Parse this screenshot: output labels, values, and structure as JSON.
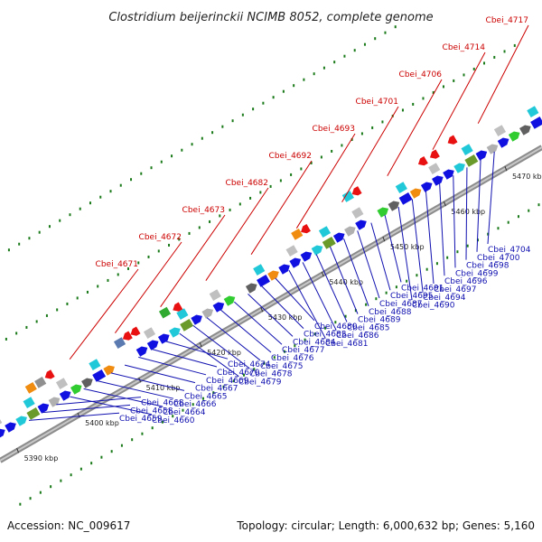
{
  "title": "Clostridium beijerinckii NCIMB 8052, complete genome",
  "footer": {
    "accession": "Accession: NC_009617",
    "info": "Topology: circular; Length: 6,000,632 bp; Genes: 5,160"
  },
  "colors": {
    "backbone": "#a8a8a8",
    "forward_gene": "#1010e0",
    "reverse_gene": "#e81010",
    "forward_label": "#1010b0",
    "reverse_label": "#cc0000",
    "gc_dots": "#1a7a1a"
  },
  "kbp_ticks": [
    "5390 kbp",
    "5400 kbp",
    "5410 kbp",
    "5420 kbp",
    "5430 kbp",
    "5440 kbp",
    "5450 kbp",
    "5460 kbp",
    "5470 kbp"
  ],
  "reverse_labels": [
    "Cbei_4717",
    "Cbei_4714",
    "Cbei_4706",
    "Cbei_4701",
    "Cbei_4693",
    "Cbei_4692",
    "Cbei_4682",
    "Cbei_4673",
    "Cbei_4672",
    "Cbei_4671"
  ],
  "forward_labels": [
    "Cbei_4704",
    "Cbei_4700",
    "Cbei_4698",
    "Cbei_4699",
    "Cbei_4696",
    "Cbei_4697",
    "Cbei_4694",
    "Cbei_4690",
    "Cbei_4691",
    "Cbei_4695",
    "Cbei_4687",
    "Cbei_4688",
    "Cbei_4689",
    "Cbei_4685",
    "Cbei_4686",
    "Cbei_4681",
    "Cbei_4680",
    "Cbei_4683",
    "Cbei_4684",
    "Cbei_4677",
    "Cbei_4676",
    "Cbei_4675",
    "Cbei_4678",
    "Cbei_4679",
    "Cbei_4674",
    "Cbei_4670",
    "Cbei_4669",
    "Cbei_4667",
    "Cbei_4665",
    "Cbei_4666",
    "Cbei_4664",
    "Cbei_4660",
    "Cbei_4668",
    "Cbei_4658",
    "Cbei_4659"
  ]
}
